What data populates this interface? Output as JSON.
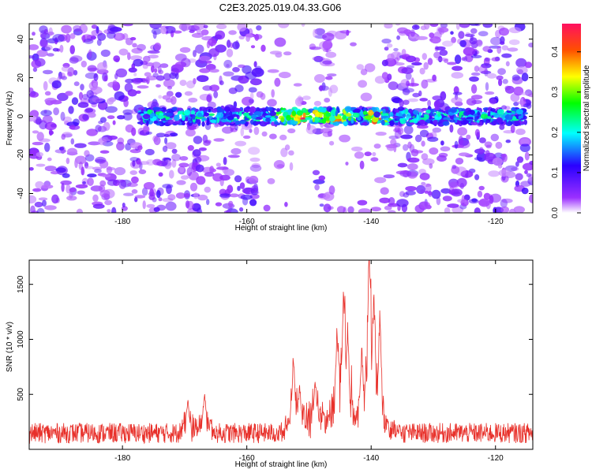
{
  "title": "C2E3.2025.019.04.33.G06",
  "chart_data": [
    {
      "type": "heatmap",
      "xlabel": "Height of straight line (km)",
      "ylabel": "Frequency (Hz)",
      "xlim": [
        -195,
        -114
      ],
      "ylim": [
        -50,
        48
      ],
      "xticks": [
        -180,
        -160,
        -140,
        -120
      ],
      "yticks": [
        -40,
        -20,
        0,
        20,
        40
      ],
      "colorbar": {
        "label": "Normalized spectral amplitude",
        "range": [
          0,
          0.47
        ],
        "ticks": [
          "0.0",
          "0.1",
          "0.2",
          "0.3",
          "0.4"
        ],
        "colormap": [
          "#ffffff",
          "#8000ff",
          "#0000ff",
          "#00ffff",
          "#00ff00",
          "#ffff00",
          "#ff8000",
          "#ff0000",
          "#ff0080"
        ]
      },
      "band": {
        "frequency_center": 0,
        "frequency_halfwidth": 4,
        "x_start": -177,
        "x_end": -115,
        "peak_positions": [
          -154,
          -151,
          -148,
          -145,
          -139
        ]
      },
      "quiet_regions": [
        [
          -158,
          -149
        ],
        [
          -146,
          -138
        ]
      ]
    },
    {
      "type": "line",
      "xlabel": "Height of straight line (km)",
      "ylabel": "SNR (10 * v/v)",
      "xlim": [
        -195,
        -114
      ],
      "ylim": [
        0,
        1720
      ],
      "xticks": [
        -180,
        -160,
        -140,
        -120
      ],
      "yticks": [
        500,
        1000,
        1500
      ],
      "series": [
        {
          "color": "#e8302a",
          "baseline": 160,
          "peaks": [
            {
              "x": -152.5,
              "y": 880
            },
            {
              "x": -151.5,
              "y": 650
            },
            {
              "x": -145.5,
              "y": 1060
            },
            {
              "x": -144.4,
              "y": 1460
            },
            {
              "x": -143.8,
              "y": 1200
            },
            {
              "x": -140.3,
              "y": 1720
            },
            {
              "x": -139.6,
              "y": 1450
            },
            {
              "x": -138.6,
              "y": 1330
            },
            {
              "x": -141.5,
              "y": 980
            },
            {
              "x": -149.0,
              "y": 700
            },
            {
              "x": -166.8,
              "y": 580
            },
            {
              "x": -169.5,
              "y": 500
            }
          ]
        }
      ]
    }
  ]
}
